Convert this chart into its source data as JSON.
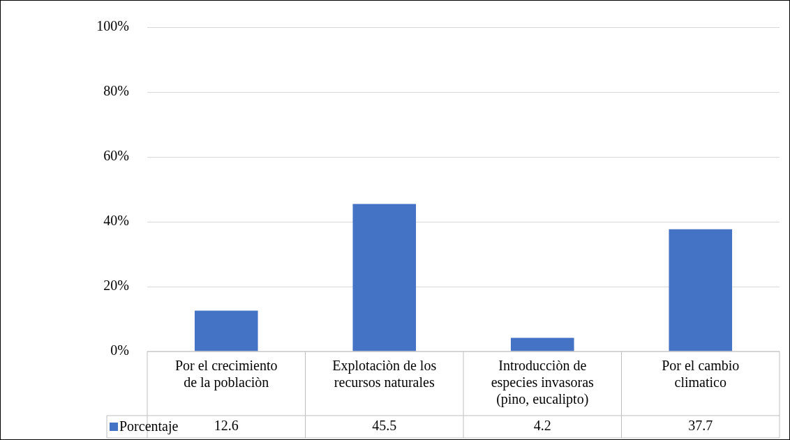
{
  "chart_data": {
    "type": "bar",
    "categories": [
      "Por el crecimiento de la poblaciòn",
      "Explotaciòn de los recursos naturales",
      "Introducciòn de especies invasoras (pino, eucalipto)",
      "Por el cambio climatico"
    ],
    "series": [
      {
        "name": "Porcentaje",
        "color": "#4472c4",
        "values": [
          12.6,
          45.5,
          4.2,
          37.7
        ]
      }
    ],
    "ylim": [
      0,
      100
    ],
    "yticks": [
      {
        "value": 0,
        "label": "0%"
      },
      {
        "value": 20,
        "label": "20%"
      },
      {
        "value": 40,
        "label": "40%"
      },
      {
        "value": 60,
        "label": "60%"
      },
      {
        "value": 80,
        "label": "80%"
      },
      {
        "value": 100,
        "label": "100%"
      }
    ],
    "grid": "y",
    "legend": "bottom",
    "data_labels": true
  }
}
